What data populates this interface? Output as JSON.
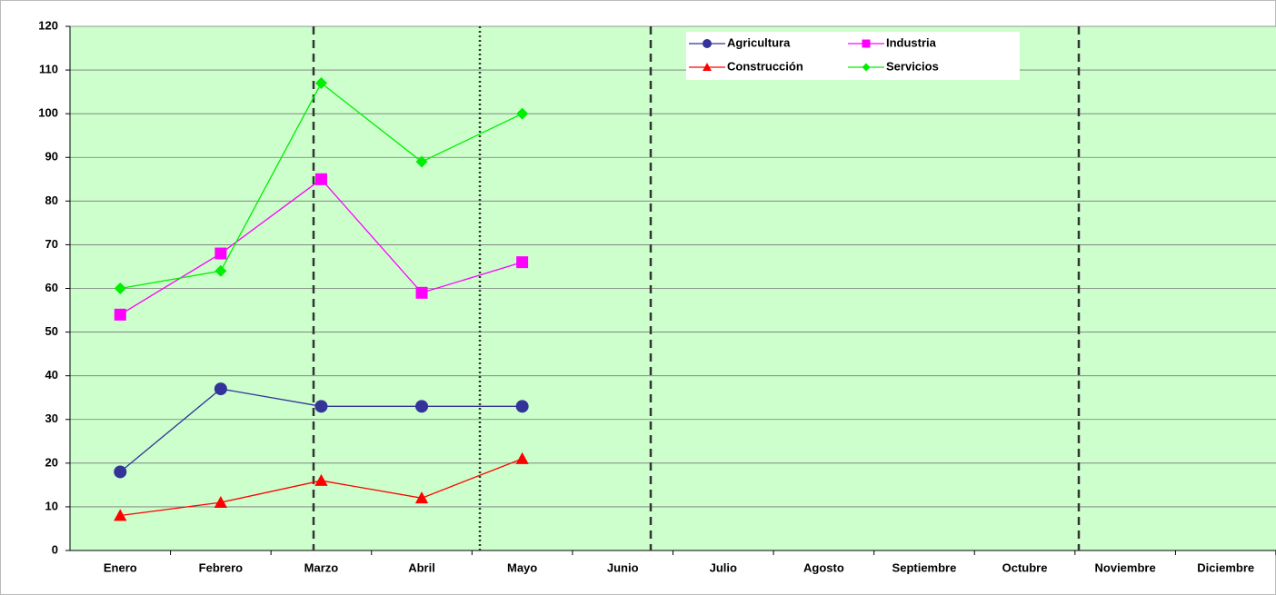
{
  "chart_data": {
    "type": "line",
    "categories": [
      "Enero",
      "Febrero",
      "Marzo",
      "Abril",
      "Mayo",
      "Junio",
      "Julio",
      "Agosto",
      "Septiembre",
      "Octubre",
      "Noviembre",
      "Diciembre"
    ],
    "series": [
      {
        "name": "Agricultura",
        "color": "#333399",
        "marker": "circle",
        "values": [
          18,
          37,
          33,
          33,
          33,
          null,
          null,
          null,
          null,
          null,
          null,
          null
        ]
      },
      {
        "name": "Industria",
        "color": "#ff00ff",
        "marker": "square",
        "values": [
          54,
          68,
          85,
          59,
          66,
          null,
          null,
          null,
          null,
          null,
          null,
          null
        ]
      },
      {
        "name": "Construcción",
        "color": "#ff0000",
        "marker": "triangle",
        "values": [
          8,
          11,
          16,
          12,
          21,
          null,
          null,
          null,
          null,
          null,
          null,
          null
        ]
      },
      {
        "name": "Servicios",
        "color": "#00ee00",
        "marker": "diamond",
        "values": [
          60,
          64,
          107,
          89,
          100,
          null,
          null,
          null,
          null,
          null,
          null,
          null
        ]
      }
    ],
    "ylim": [
      0,
      120
    ],
    "yticks": [
      0,
      10,
      20,
      30,
      40,
      50,
      60,
      70,
      80,
      90,
      100,
      110,
      120
    ],
    "grid": true,
    "legend": "top",
    "background": "#ccffcc"
  }
}
